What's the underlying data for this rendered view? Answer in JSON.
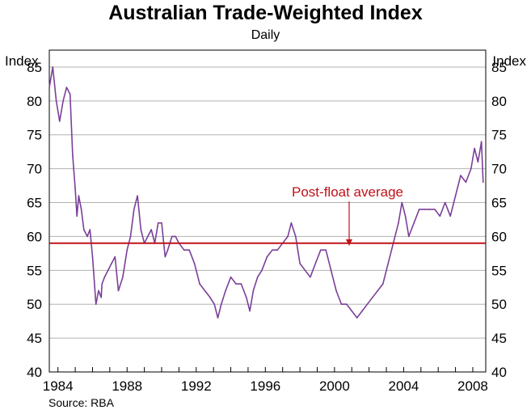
{
  "chart_data": {
    "type": "line",
    "title": "Australian Trade-Weighted Index",
    "subtitle": "Daily",
    "ylabel_left": "Index",
    "ylabel_right": "Index",
    "source": "Source: RBA",
    "ylim": [
      40,
      87.5
    ],
    "xlim": [
      1983.5,
      2008.75
    ],
    "yticks": [
      40,
      45,
      50,
      55,
      60,
      65,
      70,
      75,
      80,
      85
    ],
    "xtick_labels": [
      "1984",
      "1988",
      "1992",
      "1996",
      "2000",
      "2004",
      "2008"
    ],
    "xtick_values": [
      1984,
      1988,
      1992,
      1996,
      2000,
      2004,
      2008
    ],
    "grid": true,
    "reference_line": {
      "label": "Post-float average",
      "value": 59
    },
    "series": [
      {
        "name": "Trade-Weighted Index",
        "color": "#7b3f99",
        "x": [
          1983.5,
          1983.7,
          1983.9,
          1984.1,
          1984.3,
          1984.5,
          1984.7,
          1984.85,
          1985.0,
          1985.1,
          1985.2,
          1985.35,
          1985.5,
          1985.7,
          1985.85,
          1986.0,
          1986.2,
          1986.35,
          1986.5,
          1986.55,
          1986.7,
          1986.9,
          1987.1,
          1987.3,
          1987.5,
          1987.75,
          1988.0,
          1988.2,
          1988.4,
          1988.6,
          1988.8,
          1989.0,
          1989.2,
          1989.4,
          1989.6,
          1989.8,
          1990.0,
          1990.2,
          1990.35,
          1990.6,
          1990.8,
          1991.0,
          1991.3,
          1991.6,
          1991.9,
          1992.2,
          1992.5,
          1992.8,
          1993.05,
          1993.25,
          1993.45,
          1993.7,
          1994.0,
          1994.3,
          1994.6,
          1994.9,
          1995.1,
          1995.3,
          1995.55,
          1995.8,
          1996.1,
          1996.4,
          1996.7,
          1997.0,
          1997.3,
          1997.5,
          1997.75,
          1998.0,
          1998.3,
          1998.6,
          1998.9,
          1999.2,
          1999.5,
          1999.8,
          2000.1,
          2000.4,
          2000.7,
          2001.0,
          2001.3,
          2001.6,
          2001.9,
          2002.2,
          2002.5,
          2002.8,
          2003.1,
          2003.4,
          2003.7,
          2003.9,
          2004.1,
          2004.3,
          2004.6,
          2004.9,
          2005.2,
          2005.5,
          2005.8,
          2006.1,
          2006.4,
          2006.7,
          2007.0,
          2007.3,
          2007.6,
          2007.9,
          2008.1,
          2008.3,
          2008.5,
          2008.6
        ],
        "values": [
          82,
          85,
          80,
          77,
          80,
          82,
          81,
          72,
          67,
          63,
          66,
          64,
          61,
          60,
          61,
          57,
          50,
          52,
          51,
          53,
          54,
          55,
          56,
          57,
          52,
          54,
          58,
          60,
          64,
          66,
          61,
          59,
          60,
          61,
          59,
          62,
          62,
          57,
          58,
          60,
          60,
          59,
          58,
          58,
          56,
          53,
          52,
          51,
          50,
          48,
          50,
          52,
          54,
          53,
          53,
          51,
          49,
          52,
          54,
          55,
          57,
          58,
          58,
          59,
          60,
          62,
          60,
          56,
          55,
          54,
          56,
          58,
          58,
          55,
          52,
          50,
          50,
          49,
          48,
          49,
          50,
          51,
          52,
          53,
          56,
          59,
          62,
          65,
          63,
          60,
          62,
          64,
          64,
          64,
          64,
          63,
          65,
          63,
          66,
          69,
          68,
          70,
          73,
          71,
          74,
          68
        ]
      }
    ]
  }
}
